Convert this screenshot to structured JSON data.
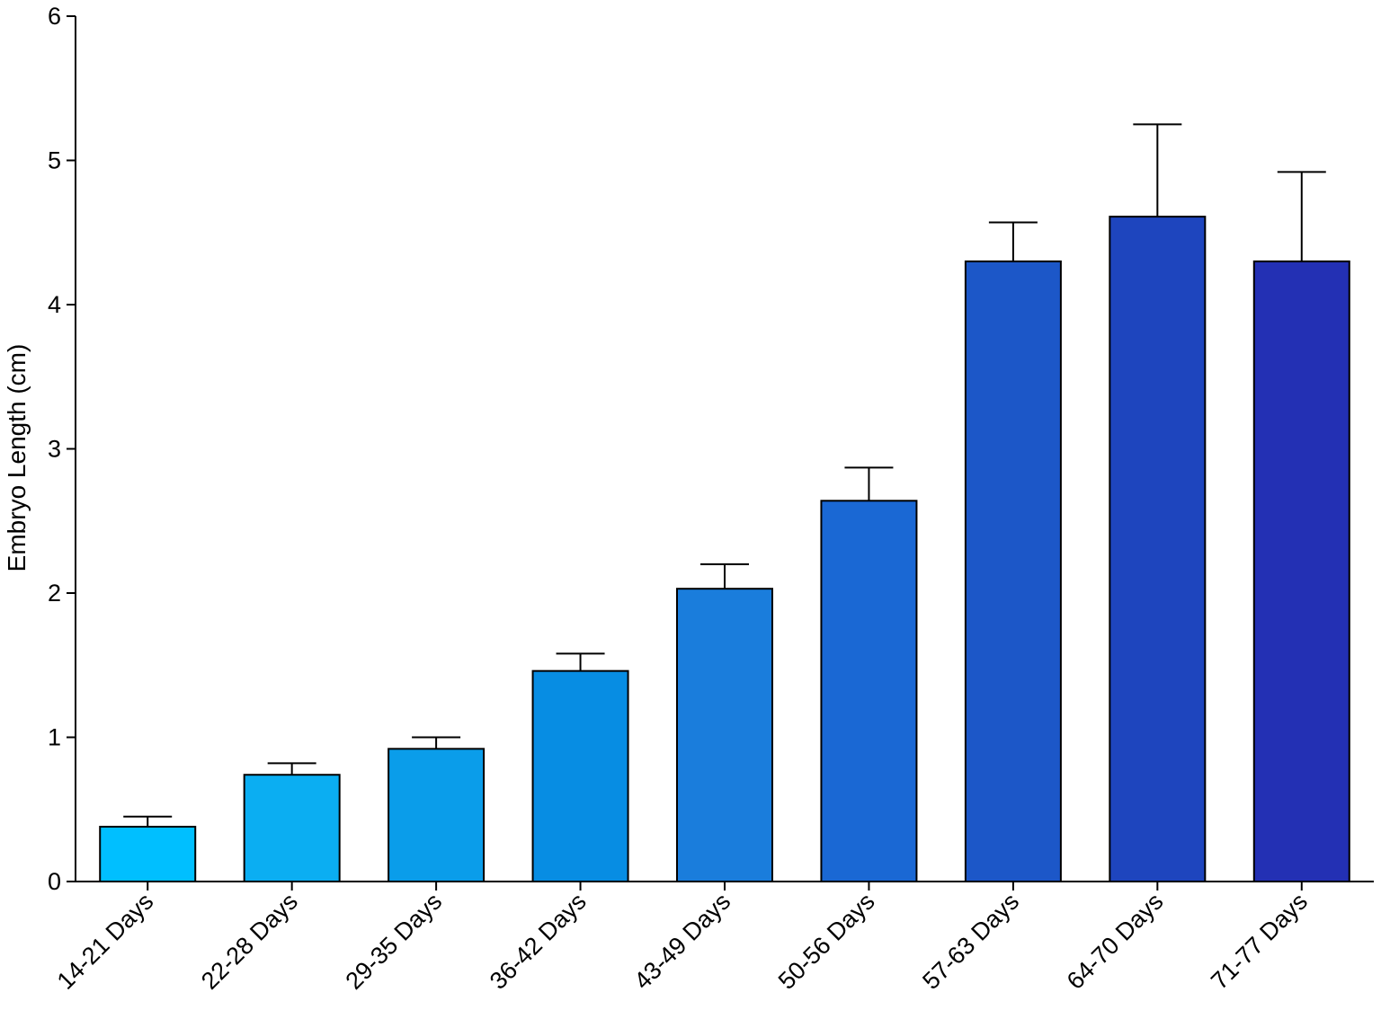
{
  "chart_data": {
    "type": "bar",
    "title": "",
    "xlabel": "",
    "ylabel": "Embryo Length (cm)",
    "ylim": [
      0,
      6
    ],
    "yticks": [
      0,
      1,
      2,
      3,
      4,
      5,
      6
    ],
    "grid": false,
    "categories": [
      "14-21 Days",
      "22-28 Days",
      "29-35 Days",
      "36-42 Days",
      "43-49 Days",
      "50-56 Days",
      "57-63 Days",
      "64-70 Days",
      "71-77 Days"
    ],
    "values": [
      0.38,
      0.74,
      0.92,
      1.46,
      2.03,
      2.64,
      4.3,
      4.61,
      4.3
    ],
    "error_upper": [
      0.07,
      0.08,
      0.08,
      0.12,
      0.17,
      0.23,
      0.27,
      0.64,
      0.62
    ],
    "colors": [
      "#00BFFF",
      "#0BAEF2",
      "#0A9DEA",
      "#078DE3",
      "#1A7DDC",
      "#1A68D4",
      "#1C57C8",
      "#1E45BE",
      "#2330B4"
    ]
  }
}
